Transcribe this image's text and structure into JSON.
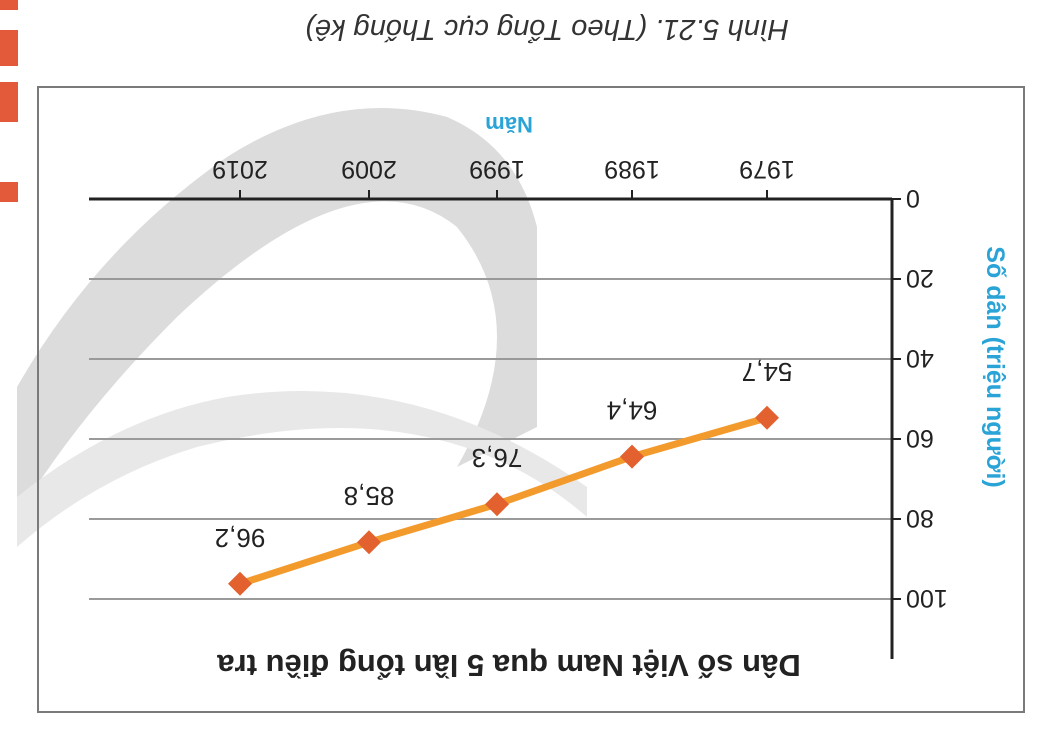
{
  "caption": "Hình 5.21. (Theo Tổng cục Thống kê)",
  "chart_data": {
    "type": "line",
    "title": "Dân số Việt Nam qua 5 lần tổng điều tra",
    "xlabel": "Năm",
    "ylabel": "Số dân (triệu người)",
    "categories": [
      "1979",
      "1989",
      "1999",
      "2009",
      "2019"
    ],
    "values": [
      54.7,
      64.4,
      76.3,
      85.8,
      96.2
    ],
    "value_labels": [
      "54,7",
      "64,4",
      "76,3",
      "85,8",
      "96,2"
    ],
    "yticks": [
      0,
      20,
      40,
      60,
      80,
      100
    ],
    "ylim": [
      0,
      100
    ],
    "grid": true,
    "orientation": "rotated 180 degrees",
    "colors": {
      "line": "#f39a2c",
      "marker": "#e2612f",
      "axis_label": "#2aa3d6",
      "grid": "#9a9a9a",
      "axis": "#222222",
      "frame": "#7a7a7a",
      "background_shape": "#d6d6d6",
      "caption_mark": "#e25a3a"
    }
  }
}
